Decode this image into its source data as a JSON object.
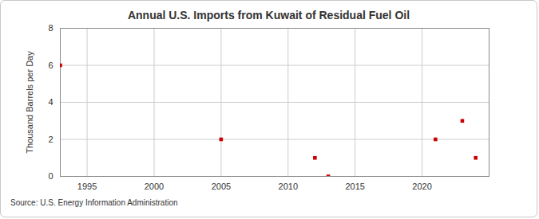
{
  "chart_data": {
    "type": "scatter",
    "title": "Annual U.S. Imports from Kuwait of Residual Fuel Oil",
    "y_label": "Thousand Barrels per Day",
    "source": "Source: U.S. Energy Information Administration",
    "x": [
      1993,
      2005,
      2012,
      2013,
      2021,
      2023,
      2024
    ],
    "values": [
      6,
      2,
      1,
      0,
      2,
      3,
      1
    ],
    "color": "#cc0000",
    "marker": "square",
    "xlim": [
      1993,
      2025
    ],
    "xticks": [
      1995,
      2000,
      2005,
      2010,
      2015,
      2020
    ],
    "ylim": [
      0,
      8
    ],
    "yticks": [
      0,
      2,
      4,
      6,
      8
    ],
    "grid": true
  }
}
